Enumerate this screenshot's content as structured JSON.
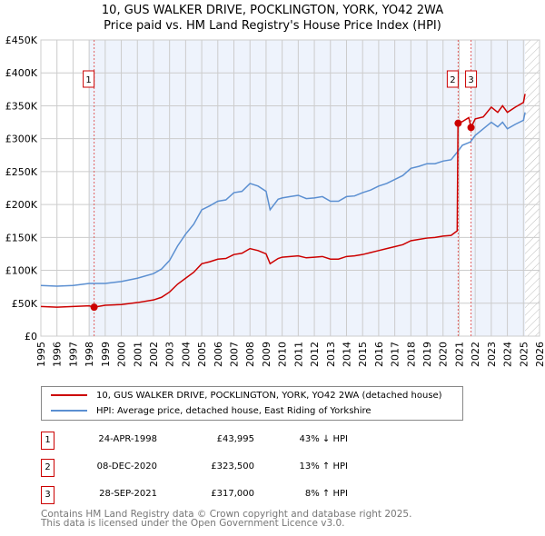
{
  "title": "10, GUS WALKER DRIVE, POCKLINGTON, YORK, YO42 2WA",
  "subtitle": "Price paid vs. HM Land Registry's House Price Index (HPI)",
  "chart_data": {
    "type": "line",
    "xlim": [
      1995,
      2026
    ],
    "ylim": [
      0,
      450000
    ],
    "x_ticks": [
      "1995",
      "1996",
      "1997",
      "1998",
      "1999",
      "2000",
      "2001",
      "2002",
      "2003",
      "2004",
      "2005",
      "2006",
      "2007",
      "2008",
      "2009",
      "2010",
      "2011",
      "2012",
      "2013",
      "2014",
      "2015",
      "2016",
      "2017",
      "2018",
      "2019",
      "2020",
      "2021",
      "2022",
      "2023",
      "2024",
      "2025",
      "2026"
    ],
    "y_ticks": [
      {
        "v": 0,
        "label": "£0"
      },
      {
        "v": 50000,
        "label": "£50K"
      },
      {
        "v": 100000,
        "label": "£100K"
      },
      {
        "v": 150000,
        "label": "£150K"
      },
      {
        "v": 200000,
        "label": "£200K"
      },
      {
        "v": 250000,
        "label": "£250K"
      },
      {
        "v": 300000,
        "label": "£300K"
      },
      {
        "v": 350000,
        "label": "£350K"
      },
      {
        "v": 400000,
        "label": "£400K"
      },
      {
        "v": 450000,
        "label": "£450K"
      }
    ],
    "grid": true,
    "colors": {
      "property": "#cc0000",
      "hpi": "#5b8fd1",
      "shade": "#eef3fc"
    },
    "series": [
      {
        "name": "10, GUS WALKER DRIVE, POCKLINGTON, YORK, YO42 2WA (detached house)",
        "key": "property",
        "points": [
          [
            1995,
            45
          ],
          [
            1996,
            44
          ],
          [
            1997,
            45
          ],
          [
            1998,
            46
          ],
          [
            1998.31,
            44
          ],
          [
            1999,
            47
          ],
          [
            2000,
            48
          ],
          [
            2001,
            51
          ],
          [
            2002,
            55
          ],
          [
            2002.5,
            59
          ],
          [
            2003,
            67
          ],
          [
            2003.5,
            79
          ],
          [
            2004,
            88
          ],
          [
            2004.5,
            97
          ],
          [
            2005,
            110
          ],
          [
            2005.5,
            113
          ],
          [
            2006,
            117
          ],
          [
            2006.5,
            118
          ],
          [
            2007,
            124
          ],
          [
            2007.5,
            126
          ],
          [
            2008,
            133
          ],
          [
            2008.5,
            130
          ],
          [
            2009,
            125
          ],
          [
            2009.25,
            110
          ],
          [
            2009.75,
            118
          ],
          [
            2010,
            120
          ],
          [
            2010.5,
            121
          ],
          [
            2011,
            122
          ],
          [
            2011.5,
            119
          ],
          [
            2012,
            120
          ],
          [
            2012.5,
            121
          ],
          [
            2013,
            117
          ],
          [
            2013.5,
            117
          ],
          [
            2014,
            121
          ],
          [
            2014.5,
            122
          ],
          [
            2015,
            124
          ],
          [
            2015.5,
            127
          ],
          [
            2016,
            130
          ],
          [
            2016.5,
            133
          ],
          [
            2017,
            136
          ],
          [
            2017.5,
            139
          ],
          [
            2018,
            145
          ],
          [
            2018.5,
            147
          ],
          [
            2019,
            149
          ],
          [
            2019.5,
            150
          ],
          [
            2020,
            152
          ],
          [
            2020.5,
            153
          ],
          [
            2020.88,
            160
          ],
          [
            2020.93,
            323.5
          ],
          [
            2021.2,
            326
          ],
          [
            2021.6,
            332
          ],
          [
            2021.74,
            317
          ],
          [
            2022,
            330
          ],
          [
            2022.5,
            333
          ],
          [
            2023,
            348
          ],
          [
            2023.4,
            340
          ],
          [
            2023.7,
            350
          ],
          [
            2024,
            340
          ],
          [
            2024.5,
            348
          ],
          [
            2025,
            355
          ],
          [
            2025.1,
            368
          ]
        ]
      },
      {
        "name": "HPI: Average price, detached house, East Riding of Yorkshire",
        "key": "hpi",
        "points": [
          [
            1995,
            77
          ],
          [
            1996,
            76
          ],
          [
            1997,
            77
          ],
          [
            1998,
            80
          ],
          [
            1998.5,
            80
          ],
          [
            1999,
            80
          ],
          [
            2000,
            83
          ],
          [
            2001,
            88
          ],
          [
            2002,
            95
          ],
          [
            2002.5,
            102
          ],
          [
            2003,
            115
          ],
          [
            2003.5,
            137
          ],
          [
            2004,
            155
          ],
          [
            2004.5,
            170
          ],
          [
            2005,
            192
          ],
          [
            2005.5,
            198
          ],
          [
            2006,
            205
          ],
          [
            2006.5,
            207
          ],
          [
            2007,
            218
          ],
          [
            2007.5,
            220
          ],
          [
            2008,
            232
          ],
          [
            2008.5,
            228
          ],
          [
            2009,
            220
          ],
          [
            2009.25,
            192
          ],
          [
            2009.75,
            208
          ],
          [
            2010,
            210
          ],
          [
            2010.5,
            212
          ],
          [
            2011,
            214
          ],
          [
            2011.5,
            209
          ],
          [
            2012,
            210
          ],
          [
            2012.5,
            212
          ],
          [
            2013,
            205
          ],
          [
            2013.5,
            205
          ],
          [
            2014,
            212
          ],
          [
            2014.5,
            213
          ],
          [
            2015,
            218
          ],
          [
            2015.5,
            222
          ],
          [
            2016,
            228
          ],
          [
            2016.5,
            232
          ],
          [
            2017,
            238
          ],
          [
            2017.5,
            244
          ],
          [
            2018,
            255
          ],
          [
            2018.5,
            258
          ],
          [
            2019,
            262
          ],
          [
            2019.5,
            262
          ],
          [
            2020,
            266
          ],
          [
            2020.5,
            268
          ],
          [
            2020.9,
            280
          ],
          [
            2021.2,
            290
          ],
          [
            2021.7,
            295
          ],
          [
            2022,
            305
          ],
          [
            2022.5,
            315
          ],
          [
            2023,
            325
          ],
          [
            2023.4,
            318
          ],
          [
            2023.7,
            325
          ],
          [
            2024,
            315
          ],
          [
            2024.5,
            322
          ],
          [
            2025,
            328
          ],
          [
            2025.1,
            340
          ]
        ]
      }
    ],
    "sales": [
      {
        "n": "1",
        "x": 1998.31,
        "y": 43995
      },
      {
        "n": "2",
        "x": 2020.94,
        "y": 323500
      },
      {
        "n": "3",
        "x": 2021.74,
        "y": 317000
      }
    ],
    "hatch_from": 2025.1
  },
  "legend": {
    "property": "10, GUS WALKER DRIVE, POCKLINGTON, YORK, YO42 2WA (detached house)",
    "hpi": "HPI: Average price, detached house, East Riding of Yorkshire"
  },
  "transactions": [
    {
      "n": "1",
      "date": "24-APR-1998",
      "price": "£43,995",
      "hpi": "43% ↓ HPI"
    },
    {
      "n": "2",
      "date": "08-DEC-2020",
      "price": "£323,500",
      "hpi": "13% ↑ HPI"
    },
    {
      "n": "3",
      "date": "28-SEP-2021",
      "price": "£317,000",
      "hpi": "8% ↑ HPI"
    }
  ],
  "footer": {
    "line1": "Contains HM Land Registry data © Crown copyright and database right 2025.",
    "line2": "This data is licensed under the Open Government Licence v3.0."
  }
}
